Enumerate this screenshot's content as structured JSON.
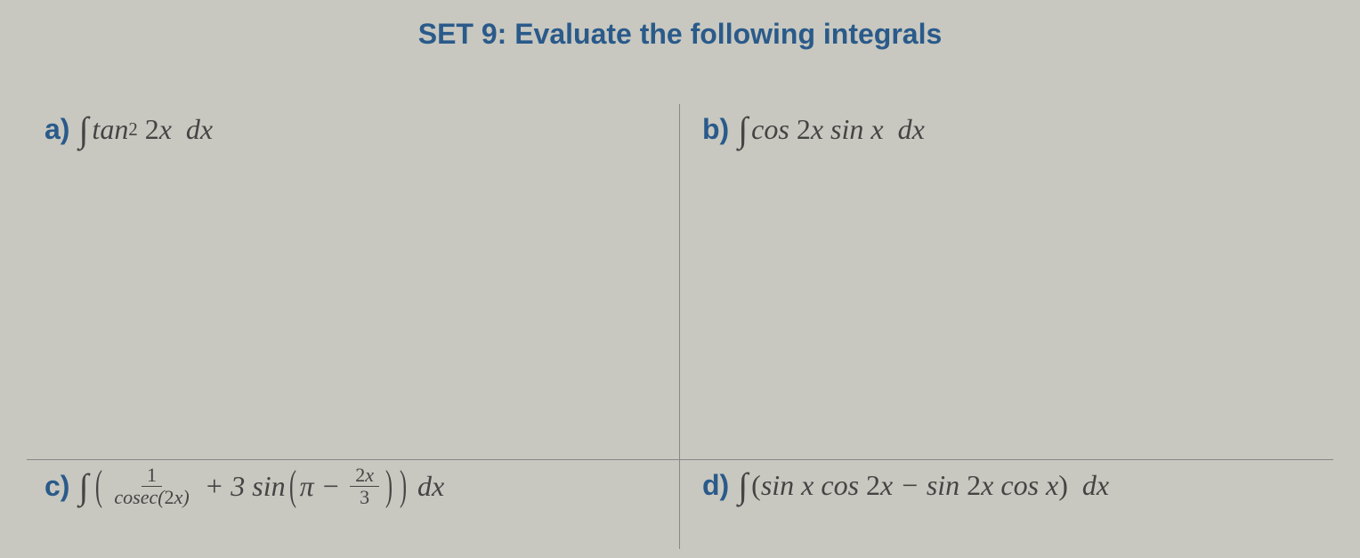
{
  "title": "SET 9: Evaluate the following integrals",
  "colors": {
    "heading": "#2a5a8a",
    "text": "#444444",
    "background": "#c8c8c0",
    "border": "#888888"
  },
  "typography": {
    "title_fontsize": 32,
    "label_fontsize": 32,
    "math_fontsize": 32,
    "frac_fontsize": 22,
    "title_family": "Arial, sans-serif",
    "math_family": "Times New Roman, serif"
  },
  "problems": {
    "a": {
      "label": "a)",
      "expression_latex": "\\int \\tan^2 2x \\; dx",
      "parts": {
        "integral": "∫",
        "func": "tan",
        "power": "2",
        "arg": "2",
        "var": "x",
        "dx": "dx"
      }
    },
    "b": {
      "label": "b)",
      "expression_latex": "\\int \\cos 2x \\sin x \\; dx",
      "parts": {
        "integral": "∫",
        "func1": "cos",
        "arg1a": "2",
        "arg1b": "x",
        "func2": "sin",
        "arg2": "x",
        "dx": "dx"
      }
    },
    "c": {
      "label": "c)",
      "expression_latex": "\\int \\left( \\frac{1}{\\operatorname{cosec}(2x)} + 3 \\sin\\left(\\pi - \\frac{2x}{3}\\right) \\right) dx",
      "parts": {
        "integral": "∫",
        "lpar": "(",
        "frac1_num": "1",
        "frac1_den_func": "cosec(",
        "frac1_den_arga": "2",
        "frac1_den_argb": "x",
        "frac1_den_rp": ")",
        "plus3sin": "+ 3 sin",
        "lpar2": "(",
        "pi": "π",
        "minus": "−",
        "frac2_num_a": "2",
        "frac2_num_b": "x",
        "frac2_den": "3",
        "rpar2": ")",
        "rpar": ")",
        "dx": "dx"
      }
    },
    "d": {
      "label": "d)",
      "expression_latex": "\\int (\\sin x \\cos 2x - \\sin 2x \\cos x) \\; dx",
      "parts": {
        "integral": "∫",
        "lp": "(",
        "sin": "sin",
        "x1": "x",
        "cos": "cos",
        "two1": "2",
        "x2": "x",
        "minus": "−",
        "sin2": "sin",
        "two2": "2",
        "x3": "x",
        "cos2": "cos",
        "x4": "x",
        "rp": ")",
        "dx": "dx"
      }
    }
  }
}
